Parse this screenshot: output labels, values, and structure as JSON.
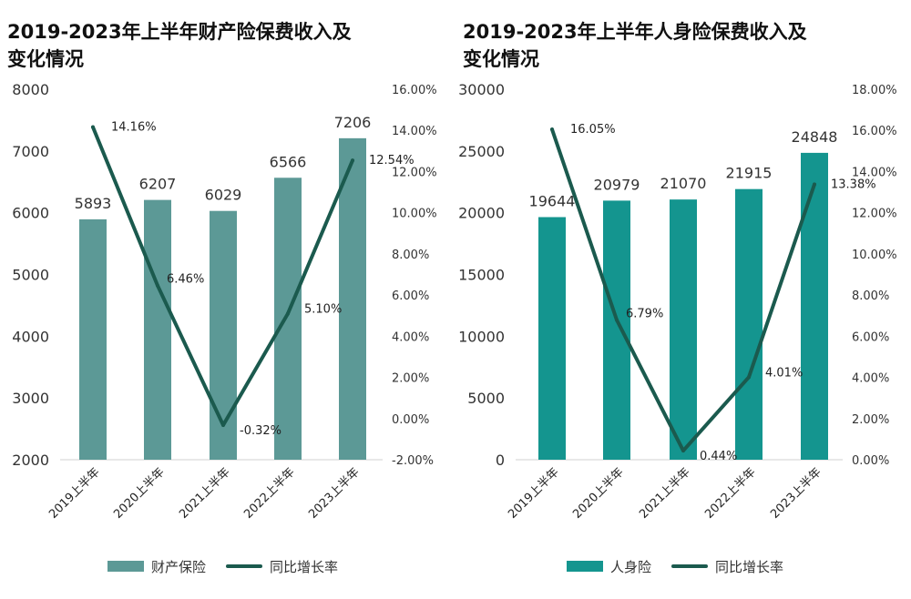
{
  "charts": [
    {
      "title_line1": "2019-2023年上半年财产险保费收入及",
      "title_line2": "变化情况",
      "bar_color": "#5c9996",
      "legend_bar_label": "财产保险",
      "legend_line_label": "同比增长率",
      "left_ticks": [
        "8000",
        "7000",
        "6000",
        "5000",
        "4000",
        "3000",
        "2000"
      ],
      "right_ticks": [
        "16.00%",
        "14.00%",
        "12.00%",
        "10.00%",
        "8.00%",
        "6.00%",
        "4.00%",
        "2.00%",
        "0.00%",
        "-2.00%"
      ],
      "bar_labels": [
        "5893",
        "6207",
        "6029",
        "6566",
        "7206"
      ],
      "line_labels": [
        "14.16%",
        "6.46%",
        "-0.32%",
        "5.10%",
        "12.54%"
      ],
      "categories": [
        "2019上半年",
        "2020上半年",
        "2021上半年",
        "2022上半年",
        "2023上半年"
      ]
    },
    {
      "title_line1": "2019-2023年上半年人身险保费收入及",
      "title_line2": "变化情况",
      "bar_color": "#14958f",
      "legend_bar_label": "人身险",
      "legend_line_label": "同比增长率",
      "left_ticks": [
        "30000",
        "25000",
        "20000",
        "15000",
        "10000",
        "5000",
        "0"
      ],
      "right_ticks": [
        "18.00%",
        "16.00%",
        "14.00%",
        "12.00%",
        "10.00%",
        "8.00%",
        "6.00%",
        "4.00%",
        "2.00%",
        "0.00%"
      ],
      "bar_labels": [
        "19644",
        "20979",
        "21070",
        "21915",
        "24848"
      ],
      "line_labels": [
        "16.05%",
        "6.79%",
        "0.44%",
        "4.01%",
        "13.38%"
      ],
      "categories": [
        "2019上半年",
        "2020上半年",
        "2021上半年",
        "2022上半年",
        "2023上半年"
      ]
    }
  ],
  "chart_data": [
    {
      "type": "bar",
      "title": "2019-2023年上半年财产险保费收入及变化情况",
      "categories": [
        "2019上半年",
        "2020上半年",
        "2021上半年",
        "2022上半年",
        "2023上半年"
      ],
      "series": [
        {
          "name": "财产保险",
          "type": "bar",
          "axis": "left",
          "values": [
            5893,
            6207,
            6029,
            6566,
            7206
          ]
        },
        {
          "name": "同比增长率",
          "type": "line",
          "axis": "right",
          "values": [
            14.16,
            6.46,
            -0.32,
            5.1,
            12.54
          ]
        }
      ],
      "ylim_left": [
        2000,
        8000
      ],
      "ylim_right": [
        -2,
        16
      ],
      "grid": false,
      "legend": "bottom"
    },
    {
      "type": "bar",
      "title": "2019-2023年上半年人身险保费收入及变化情况",
      "categories": [
        "2019上半年",
        "2020上半年",
        "2021上半年",
        "2022上半年",
        "2023上半年"
      ],
      "series": [
        {
          "name": "人身险",
          "type": "bar",
          "axis": "left",
          "values": [
            19644,
            20979,
            21070,
            21915,
            24848
          ]
        },
        {
          "name": "同比增长率",
          "type": "line",
          "axis": "right",
          "values": [
            16.05,
            6.79,
            0.44,
            4.01,
            13.38
          ]
        }
      ],
      "ylim_left": [
        0,
        30000
      ],
      "ylim_right": [
        0,
        18
      ],
      "grid": false,
      "legend": "bottom"
    }
  ]
}
